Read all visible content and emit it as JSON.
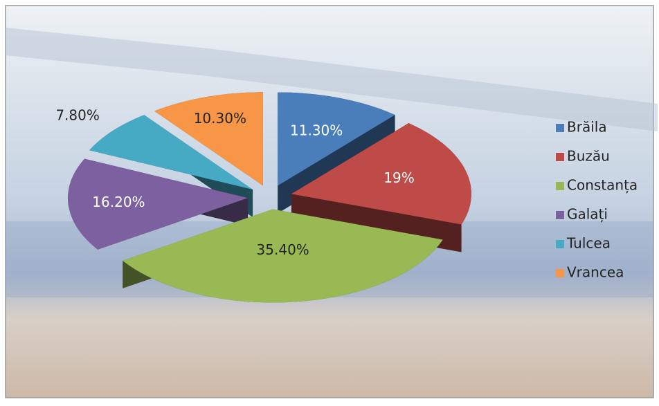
{
  "chart_data": {
    "type": "pie3d",
    "categories": [
      "Brăila",
      "Buzău",
      "Constanța",
      "Galați",
      "Tulcea",
      "Vrancea"
    ],
    "values": [
      11.3,
      19,
      35.4,
      16.2,
      7.8,
      10.3
    ],
    "value_labels": [
      "11.30%",
      "19%",
      "35.40%",
      "16.20%",
      "7.80%",
      "10.30%"
    ],
    "colors": [
      "#4a7ebb",
      "#be4b48",
      "#98b954",
      "#7d60a0",
      "#46aac5",
      "#f79646"
    ],
    "legend": "right"
  }
}
